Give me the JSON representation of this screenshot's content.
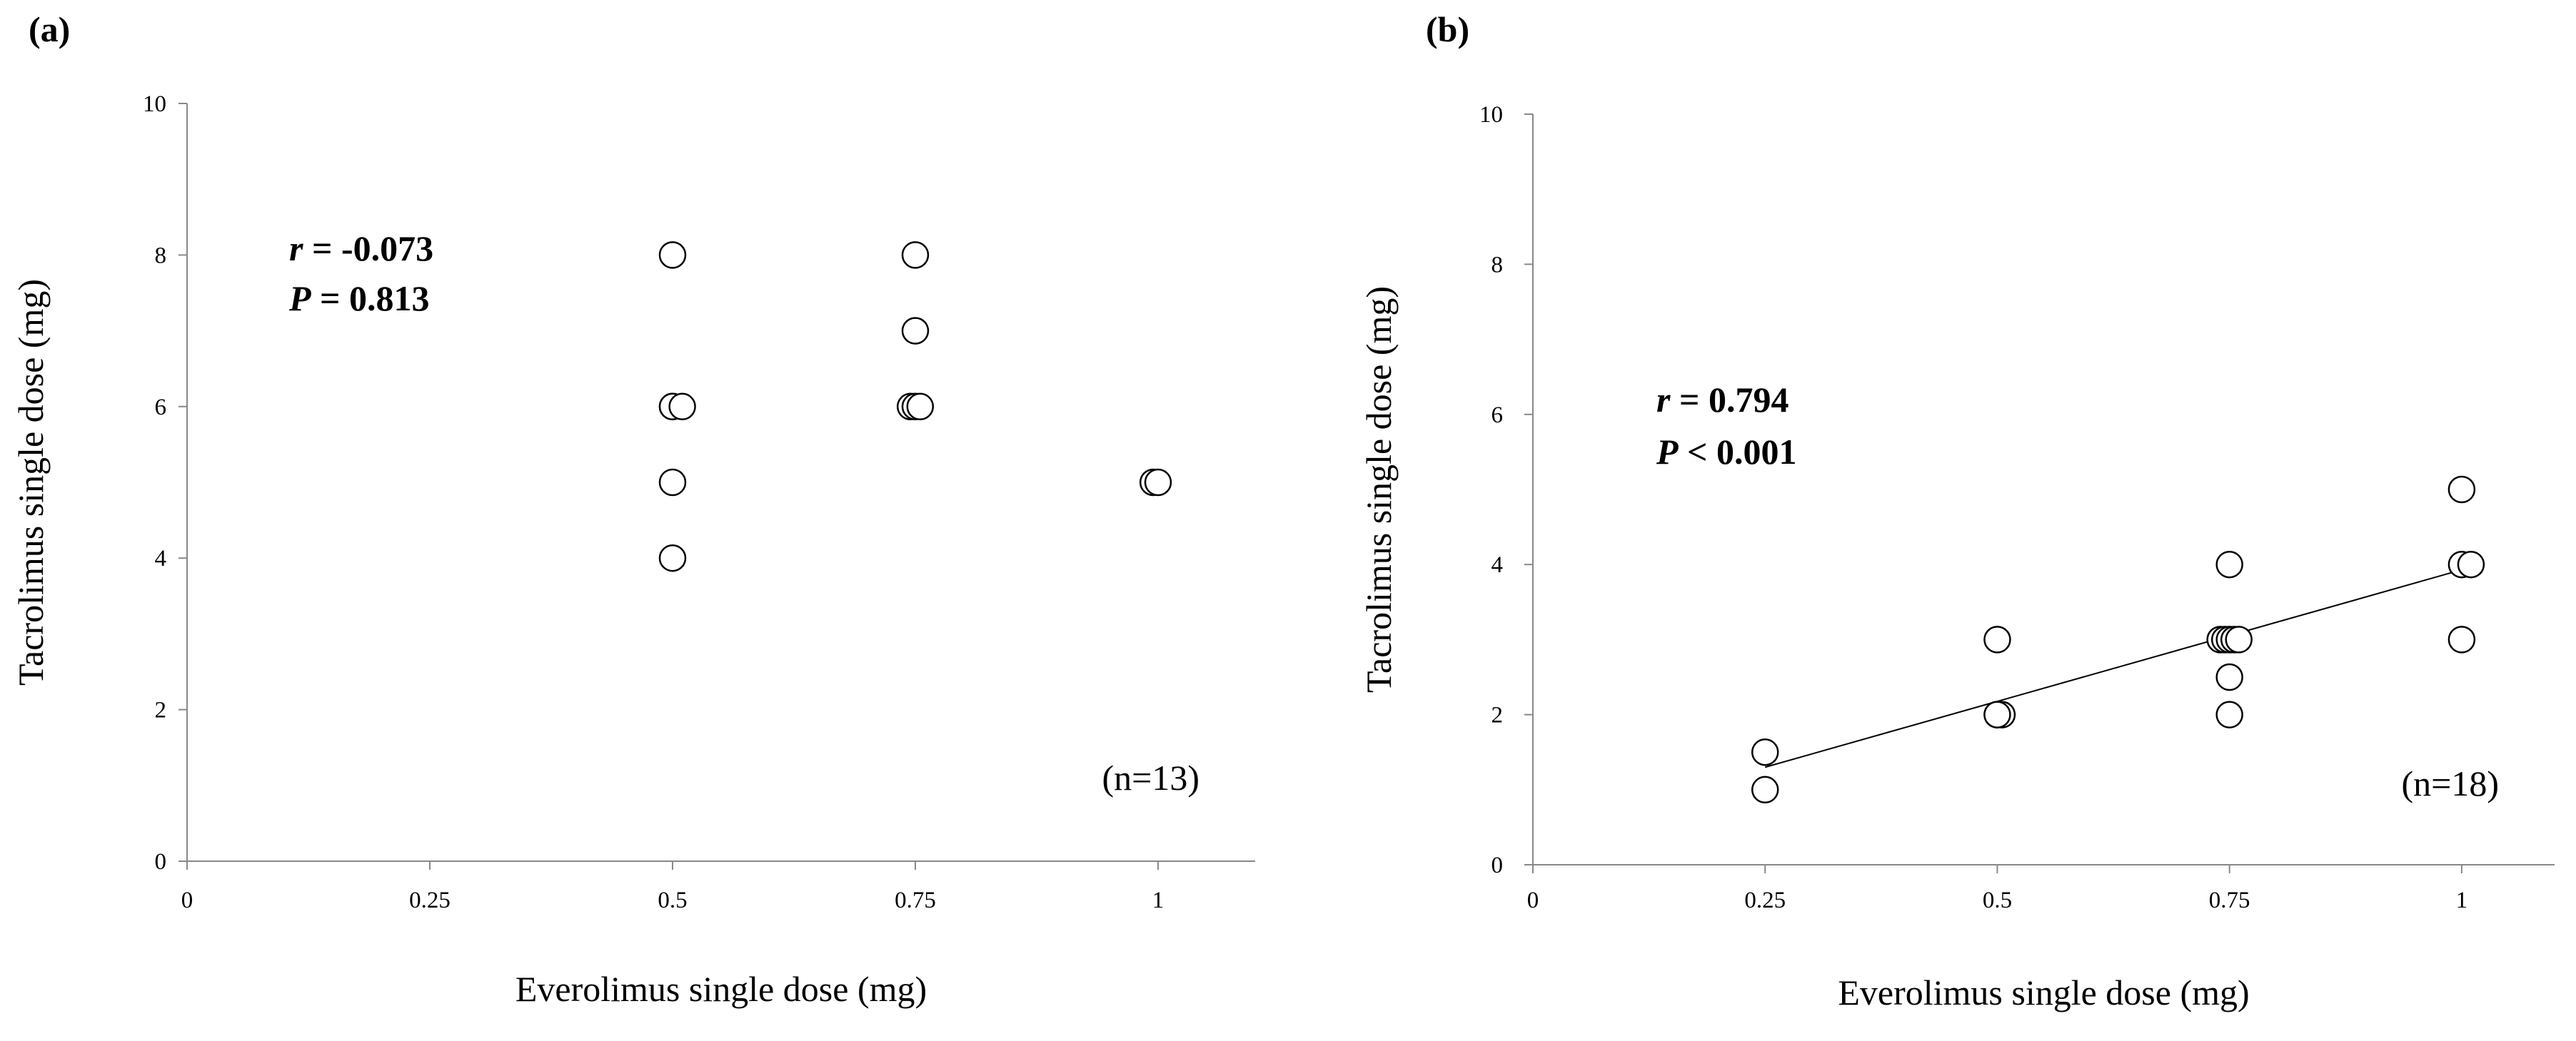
{
  "chart_data": [
    {
      "type": "scatter",
      "panel_label": "(a)",
      "xlabel": "Everolimus single dose (mg)",
      "ylabel": "Tacrolimus single dose (mg)",
      "xlim": [
        0,
        1.1
      ],
      "ylim": [
        0,
        10
      ],
      "xticks": [
        0,
        0.25,
        0.5,
        0.75,
        1
      ],
      "xtick_labels": [
        "0",
        "0.25",
        "0.5",
        "0.75",
        "1"
      ],
      "yticks": [
        0,
        2,
        4,
        6,
        8,
        10
      ],
      "ytick_labels": [
        "0",
        "2",
        "4",
        "6",
        "8",
        "10"
      ],
      "grid": false,
      "points": [
        {
          "x": 0.5,
          "y": 8
        },
        {
          "x": 0.5,
          "y": 6
        },
        {
          "x": 0.5,
          "y": 6
        },
        {
          "x": 0.51,
          "y": 6
        },
        {
          "x": 0.5,
          "y": 5
        },
        {
          "x": 0.5,
          "y": 4
        },
        {
          "x": 0.75,
          "y": 8
        },
        {
          "x": 0.75,
          "y": 7
        },
        {
          "x": 0.745,
          "y": 6
        },
        {
          "x": 0.75,
          "y": 6
        },
        {
          "x": 0.755,
          "y": 6
        },
        {
          "x": 0.995,
          "y": 5
        },
        {
          "x": 1.0,
          "y": 5
        }
      ],
      "stats": {
        "r_symbol": "r",
        "r_text": " = -0.073",
        "p_symbol": "P",
        "p_text": " = 0.813"
      },
      "n_label": "(n=13)"
    },
    {
      "type": "scatter",
      "panel_label": "(b)",
      "xlabel": "Everolimus single dose (mg)",
      "ylabel": "Tacrolimus single dose (mg)",
      "xlim": [
        0,
        1.1
      ],
      "ylim": [
        0,
        10
      ],
      "xticks": [
        0,
        0.25,
        0.5,
        0.75,
        1
      ],
      "xtick_labels": [
        "0",
        "0.25",
        "0.5",
        "0.75",
        "1"
      ],
      "yticks": [
        0,
        2,
        4,
        6,
        8,
        10
      ],
      "ytick_labels": [
        "0",
        "2",
        "4",
        "6",
        "8",
        "10"
      ],
      "grid": false,
      "points": [
        {
          "x": 0.25,
          "y": 1.5
        },
        {
          "x": 0.25,
          "y": 1
        },
        {
          "x": 0.5,
          "y": 3
        },
        {
          "x": 0.5,
          "y": 2
        },
        {
          "x": 0.505,
          "y": 2
        },
        {
          "x": 0.75,
          "y": 4
        },
        {
          "x": 0.74,
          "y": 3
        },
        {
          "x": 0.745,
          "y": 3
        },
        {
          "x": 0.75,
          "y": 3
        },
        {
          "x": 0.755,
          "y": 3
        },
        {
          "x": 0.76,
          "y": 3
        },
        {
          "x": 0.75,
          "y": 2.5
        },
        {
          "x": 0.75,
          "y": 2
        },
        {
          "x": 1.0,
          "y": 5
        },
        {
          "x": 1.0,
          "y": 4
        },
        {
          "x": 1.01,
          "y": 4
        },
        {
          "x": 1.0,
          "y": 3
        },
        {
          "x": 0.5,
          "y": 2
        }
      ],
      "trendline": {
        "x": [
          0.25,
          1.0
        ],
        "y": [
          1.3,
          3.93
        ]
      },
      "stats": {
        "r_symbol": "r",
        "r_text": " = 0.794",
        "p_symbol": "P",
        "p_text": " < 0.001"
      },
      "n_label": "(n=18)"
    }
  ]
}
